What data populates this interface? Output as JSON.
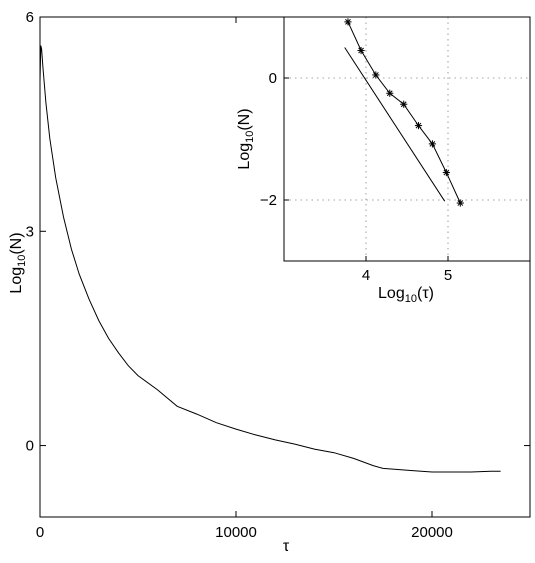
{
  "chart_data": [
    {
      "type": "line",
      "xlabel": "τ",
      "ylabel": "Log",
      "ylabel_sub": "10",
      "ylabel_suffix": "(N)",
      "xlim": [
        0,
        25000
      ],
      "ylim": [
        -1,
        6
      ],
      "xticks": [
        0,
        10000,
        20000
      ],
      "xtick_labels": [
        "0",
        "10000",
        "20000"
      ],
      "yticks": [
        0,
        3,
        6
      ],
      "ytick_labels": [
        "0",
        "3",
        "6"
      ],
      "grid": false,
      "series": [
        {
          "x": [
            0,
            40,
            80,
            150,
            300,
            500,
            800,
            1200,
            1600,
            2000,
            2500,
            3000,
            3500,
            4000,
            4500,
            5000,
            6000,
            7000,
            8000,
            9000,
            10000,
            11000,
            12000,
            13000,
            14000,
            15000,
            16000,
            17000,
            17500,
            18000,
            19000,
            20000,
            21000,
            22000,
            23000,
            23500
          ],
          "y": [
            5.1,
            5.6,
            5.55,
            5.3,
            4.8,
            4.3,
            3.75,
            3.2,
            2.75,
            2.4,
            2.05,
            1.75,
            1.5,
            1.3,
            1.12,
            0.98,
            0.78,
            0.55,
            0.44,
            0.32,
            0.23,
            0.15,
            0.08,
            0.02,
            -0.05,
            -0.1,
            -0.18,
            -0.28,
            -0.32,
            -0.33,
            -0.35,
            -0.37,
            -0.37,
            -0.37,
            -0.36,
            -0.36
          ]
        }
      ]
    },
    {
      "type": "line",
      "xlabel": "Log",
      "xlabel_sub": "10",
      "xlabel_suffix": "(τ)",
      "ylabel": "Log",
      "ylabel_sub": "10",
      "ylabel_suffix": "(N)",
      "xlim": [
        3.0,
        6.0
      ],
      "ylim": [
        -3,
        1
      ],
      "xticks": [
        4,
        5
      ],
      "xtick_labels": [
        "4",
        "5"
      ],
      "yticks": [
        0,
        -2
      ],
      "ytick_labels": [
        "0",
        "−2"
      ],
      "grid": true,
      "series": [
        {
          "marker": "asterisk",
          "x": [
            3.78,
            3.94,
            4.12,
            4.29,
            4.46,
            4.64,
            4.81,
            4.98,
            5.15
          ],
          "y": [
            0.92,
            0.45,
            0.05,
            -0.25,
            -0.43,
            -0.78,
            -1.08,
            -1.55,
            -2.05
          ]
        },
        {
          "marker": "none",
          "x": [
            3.74,
            4.96
          ],
          "y": [
            0.5,
            -2.02
          ]
        }
      ]
    }
  ]
}
